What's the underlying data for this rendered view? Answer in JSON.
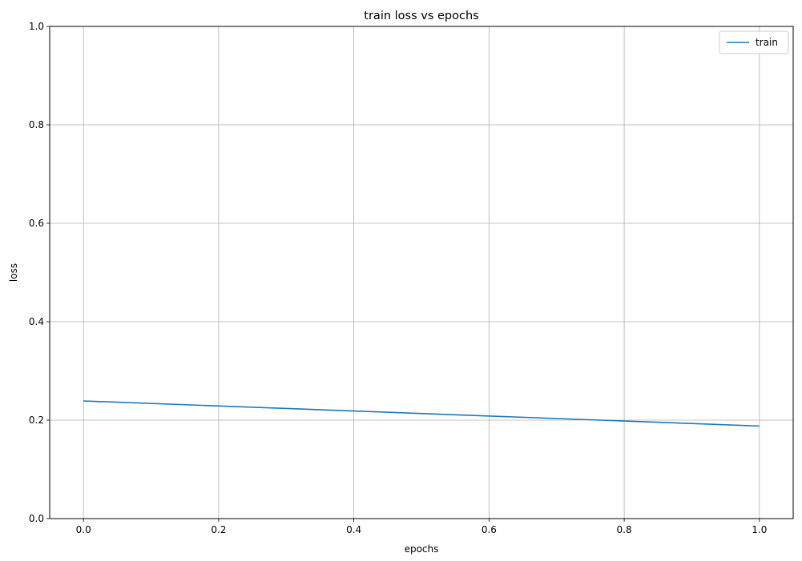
{
  "chart_data": {
    "type": "line",
    "title": "train loss vs epochs",
    "xlabel": "epochs",
    "ylabel": "loss",
    "xlim": [
      -0.05,
      1.05
    ],
    "ylim": [
      0.0,
      1.0
    ],
    "xticks": [
      0.0,
      0.2,
      0.4,
      0.6,
      0.8,
      1.0
    ],
    "xtick_labels": [
      "0.0",
      "0.2",
      "0.4",
      "0.6",
      "0.8",
      "1.0"
    ],
    "yticks": [
      0.0,
      0.2,
      0.4,
      0.6,
      0.8,
      1.0
    ],
    "ytick_labels": [
      "0.0",
      "0.2",
      "0.4",
      "0.6",
      "0.8",
      "1.0"
    ],
    "grid": true,
    "legend_position": "top-right",
    "series": [
      {
        "name": "train",
        "color": "#1f77b4",
        "x": [
          0.0,
          1.0
        ],
        "y": [
          0.239,
          0.188
        ]
      }
    ]
  }
}
